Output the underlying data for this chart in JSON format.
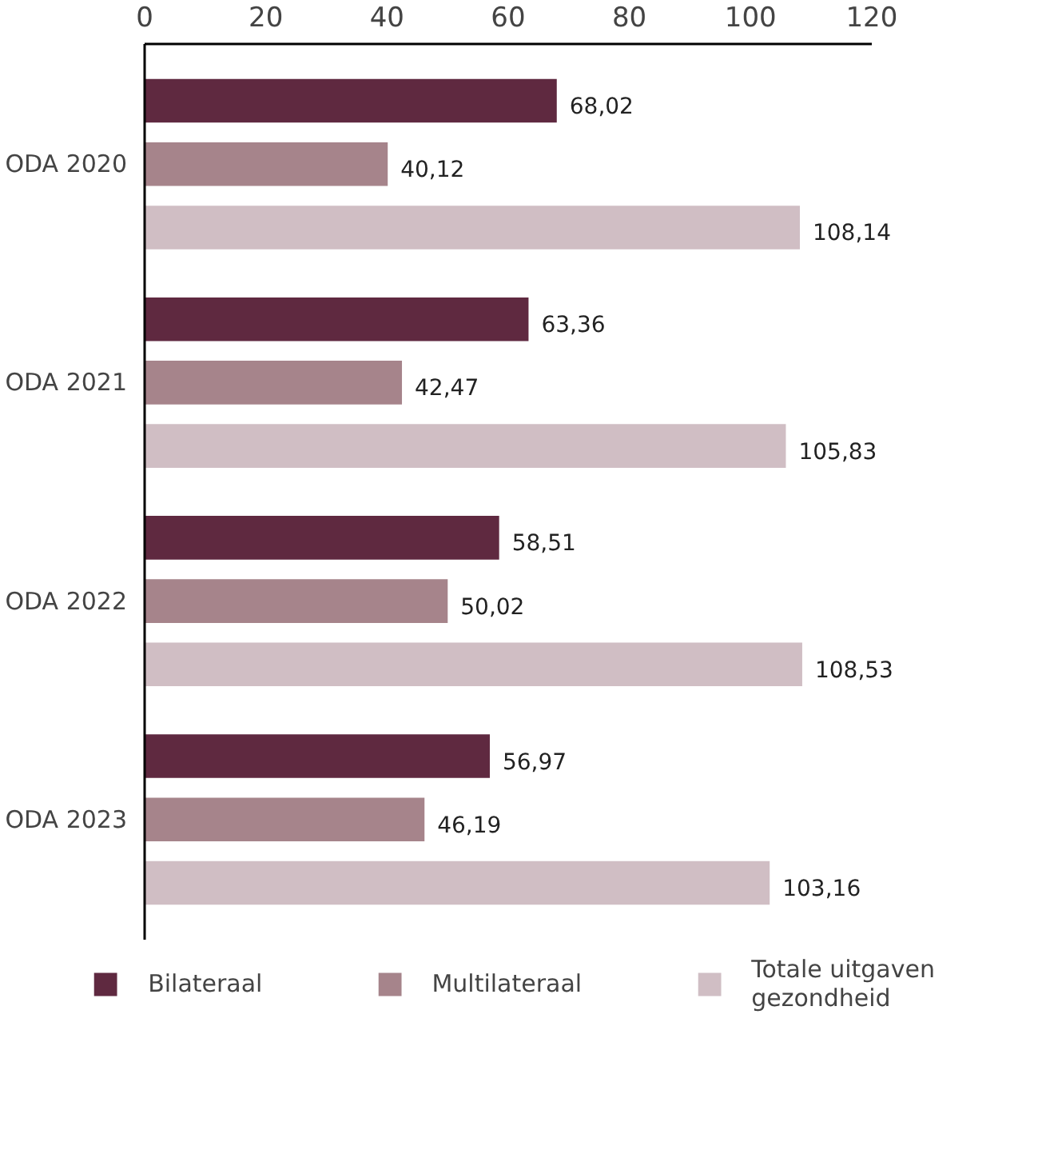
{
  "chart_data": {
    "type": "bar",
    "orientation": "horizontal",
    "categories": [
      "ODA 2020",
      "ODA 2021",
      "ODA 2022",
      "ODA 2023"
    ],
    "series": [
      {
        "name": "Bilateraal",
        "color": "#5f2940",
        "values": [
          68.02,
          63.36,
          58.51,
          56.97
        ],
        "value_labels": [
          "68,02",
          "63,36",
          "58,51",
          "56,97"
        ]
      },
      {
        "name": "Multilateraal",
        "color": "#a6848b",
        "values": [
          40.12,
          42.47,
          50.02,
          46.19
        ],
        "value_labels": [
          "40,12",
          "42,47",
          "50,02",
          "46,19"
        ]
      },
      {
        "name": "Totale uitgaven gezondheid",
        "color": "#d0bec4",
        "values": [
          108.14,
          105.83,
          108.53,
          103.16
        ],
        "value_labels": [
          "108,14",
          "105,83",
          "108,53",
          "103,16"
        ]
      }
    ],
    "xlim": [
      0,
      120
    ],
    "xticks": [
      0,
      20,
      40,
      60,
      80,
      100,
      120
    ],
    "grid": false,
    "legend": "bottom"
  }
}
